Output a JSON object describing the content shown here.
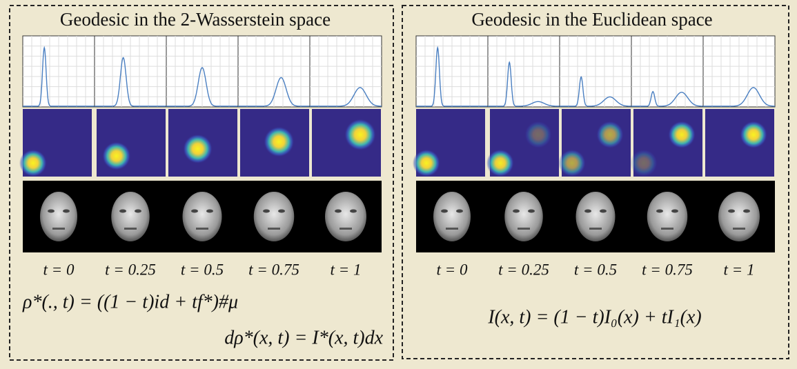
{
  "left_panel": {
    "title": "Geodesic in the 2-Wasserstein space",
    "time_labels": [
      "t = 0",
      "t = 0.25",
      "t = 0.5",
      "t = 0.75",
      "t = 1"
    ],
    "formulas": [
      "ρ*(., t) = ((1 − t)id + tf*)#μ",
      "dρ*(x, t) = I*(x, t)dx"
    ]
  },
  "right_panel": {
    "title": "Geodesic in the Euclidean space",
    "time_labels": [
      "t = 0",
      "t = 0.25",
      "t = 0.5",
      "t = 0.75",
      "t = 1"
    ],
    "formulas": [
      "I(x, t) = (1 − t)I₀(x) + tI₁(x)"
    ]
  }
}
